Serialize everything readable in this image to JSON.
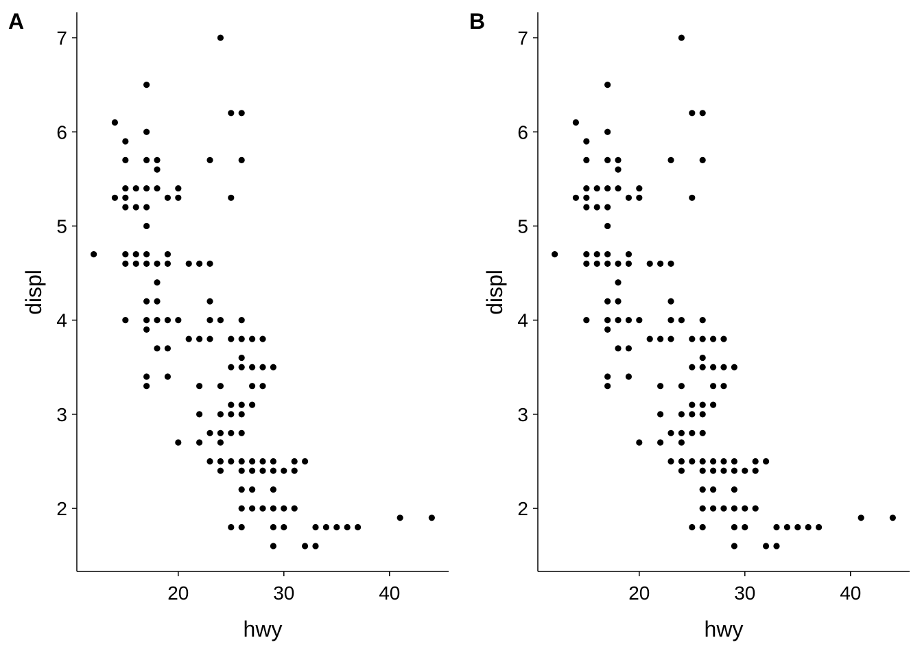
{
  "chart_data": [
    {
      "type": "scatter",
      "tag": "A",
      "xlabel": "hwy",
      "ylabel": "displ",
      "xticks": [
        20,
        30,
        40
      ],
      "yticks": [
        2,
        3,
        4,
        5,
        6,
        7
      ],
      "xlim": [
        10.4,
        45.6
      ],
      "ylim": [
        1.33,
        7.27
      ],
      "grid": false,
      "legend": "none",
      "point_color": "#000000",
      "points": [
        [
          12,
          4.7
        ],
        [
          14,
          5.3
        ],
        [
          14,
          6.1
        ],
        [
          15,
          5.9
        ],
        [
          15,
          5.7
        ],
        [
          15,
          5.4
        ],
        [
          15,
          5.3
        ],
        [
          15,
          5.2
        ],
        [
          15,
          4.7
        ],
        [
          15,
          4.6
        ],
        [
          15,
          4.0
        ],
        [
          16,
          5.4
        ],
        [
          16,
          5.2
        ],
        [
          16,
          4.7
        ],
        [
          16,
          4.6
        ],
        [
          17,
          6.5
        ],
        [
          17,
          6.0
        ],
        [
          17,
          5.7
        ],
        [
          17,
          5.4
        ],
        [
          17,
          5.2
        ],
        [
          17,
          5.0
        ],
        [
          17,
          4.7
        ],
        [
          17,
          4.6
        ],
        [
          17,
          4.2
        ],
        [
          17,
          4.0
        ],
        [
          17,
          3.9
        ],
        [
          17,
          3.4
        ],
        [
          17,
          3.3
        ],
        [
          18,
          5.7
        ],
        [
          18,
          5.6
        ],
        [
          18,
          5.4
        ],
        [
          18,
          4.6
        ],
        [
          18,
          4.4
        ],
        [
          18,
          4.2
        ],
        [
          18,
          4.0
        ],
        [
          18,
          3.7
        ],
        [
          19,
          5.3
        ],
        [
          19,
          4.7
        ],
        [
          19,
          4.6
        ],
        [
          19,
          4.0
        ],
        [
          19,
          3.7
        ],
        [
          19,
          3.4
        ],
        [
          20,
          5.4
        ],
        [
          20,
          5.3
        ],
        [
          20,
          4.0
        ],
        [
          20,
          2.7
        ],
        [
          21,
          4.6
        ],
        [
          21,
          3.8
        ],
        [
          22,
          4.6
        ],
        [
          22,
          3.8
        ],
        [
          22,
          3.3
        ],
        [
          22,
          3.0
        ],
        [
          22,
          2.7
        ],
        [
          23,
          5.7
        ],
        [
          23,
          4.6
        ],
        [
          23,
          4.2
        ],
        [
          23,
          4.0
        ],
        [
          23,
          3.8
        ],
        [
          23,
          2.8
        ],
        [
          23,
          2.5
        ],
        [
          24,
          7.0
        ],
        [
          24,
          4.0
        ],
        [
          24,
          3.3
        ],
        [
          24,
          3.0
        ],
        [
          24,
          2.8
        ],
        [
          24,
          2.7
        ],
        [
          24,
          2.5
        ],
        [
          24,
          2.4
        ],
        [
          25,
          6.2
        ],
        [
          25,
          5.3
        ],
        [
          25,
          3.8
        ],
        [
          25,
          3.5
        ],
        [
          25,
          3.1
        ],
        [
          25,
          3.0
        ],
        [
          25,
          2.8
        ],
        [
          25,
          2.5
        ],
        [
          25,
          1.8
        ],
        [
          26,
          6.2
        ],
        [
          26,
          5.7
        ],
        [
          26,
          4.0
        ],
        [
          26,
          3.8
        ],
        [
          26,
          3.6
        ],
        [
          26,
          3.5
        ],
        [
          26,
          3.1
        ],
        [
          26,
          3.0
        ],
        [
          26,
          2.8
        ],
        [
          26,
          2.5
        ],
        [
          26,
          2.4
        ],
        [
          26,
          2.2
        ],
        [
          26,
          2.0
        ],
        [
          26,
          1.8
        ],
        [
          27,
          3.8
        ],
        [
          27,
          3.5
        ],
        [
          27,
          3.3
        ],
        [
          27,
          3.1
        ],
        [
          27,
          2.5
        ],
        [
          27,
          2.4
        ],
        [
          27,
          2.2
        ],
        [
          27,
          2.0
        ],
        [
          28,
          3.8
        ],
        [
          28,
          3.5
        ],
        [
          28,
          3.3
        ],
        [
          28,
          2.5
        ],
        [
          28,
          2.4
        ],
        [
          28,
          2.0
        ],
        [
          29,
          3.5
        ],
        [
          29,
          2.5
        ],
        [
          29,
          2.4
        ],
        [
          29,
          2.2
        ],
        [
          29,
          2.0
        ],
        [
          29,
          1.8
        ],
        [
          29,
          1.6
        ],
        [
          30,
          2.4
        ],
        [
          30,
          2.0
        ],
        [
          30,
          1.8
        ],
        [
          31,
          2.5
        ],
        [
          31,
          2.4
        ],
        [
          31,
          2.0
        ],
        [
          32,
          2.5
        ],
        [
          32,
          1.6
        ],
        [
          33,
          1.8
        ],
        [
          33,
          1.6
        ],
        [
          34,
          1.8
        ],
        [
          35,
          1.8
        ],
        [
          36,
          1.8
        ],
        [
          37,
          1.8
        ],
        [
          41,
          1.9
        ],
        [
          44,
          1.9
        ]
      ]
    },
    {
      "type": "scatter",
      "tag": "B",
      "xlabel": "hwy",
      "ylabel": "displ",
      "xticks": [
        20,
        30,
        40
      ],
      "yticks": [
        2,
        3,
        4,
        5,
        6,
        7
      ],
      "xlim": [
        10.4,
        45.6
      ],
      "ylim": [
        1.33,
        7.27
      ],
      "grid": false,
      "legend": "none",
      "point_color": "#000000",
      "points": [
        [
          12,
          4.7
        ],
        [
          14,
          5.3
        ],
        [
          14,
          6.1
        ],
        [
          15,
          5.9
        ],
        [
          15,
          5.7
        ],
        [
          15,
          5.4
        ],
        [
          15,
          5.3
        ],
        [
          15,
          5.2
        ],
        [
          15,
          4.7
        ],
        [
          15,
          4.6
        ],
        [
          15,
          4.0
        ],
        [
          16,
          5.4
        ],
        [
          16,
          5.2
        ],
        [
          16,
          4.7
        ],
        [
          16,
          4.6
        ],
        [
          17,
          6.5
        ],
        [
          17,
          6.0
        ],
        [
          17,
          5.7
        ],
        [
          17,
          5.4
        ],
        [
          17,
          5.2
        ],
        [
          17,
          5.0
        ],
        [
          17,
          4.7
        ],
        [
          17,
          4.6
        ],
        [
          17,
          4.2
        ],
        [
          17,
          4.0
        ],
        [
          17,
          3.9
        ],
        [
          17,
          3.4
        ],
        [
          17,
          3.3
        ],
        [
          18,
          5.7
        ],
        [
          18,
          5.6
        ],
        [
          18,
          5.4
        ],
        [
          18,
          4.6
        ],
        [
          18,
          4.4
        ],
        [
          18,
          4.2
        ],
        [
          18,
          4.0
        ],
        [
          18,
          3.7
        ],
        [
          19,
          5.3
        ],
        [
          19,
          4.7
        ],
        [
          19,
          4.6
        ],
        [
          19,
          4.0
        ],
        [
          19,
          3.7
        ],
        [
          19,
          3.4
        ],
        [
          20,
          5.4
        ],
        [
          20,
          5.3
        ],
        [
          20,
          4.0
        ],
        [
          20,
          2.7
        ],
        [
          21,
          4.6
        ],
        [
          21,
          3.8
        ],
        [
          22,
          4.6
        ],
        [
          22,
          3.8
        ],
        [
          22,
          3.3
        ],
        [
          22,
          3.0
        ],
        [
          22,
          2.7
        ],
        [
          23,
          5.7
        ],
        [
          23,
          4.6
        ],
        [
          23,
          4.2
        ],
        [
          23,
          4.0
        ],
        [
          23,
          3.8
        ],
        [
          23,
          2.8
        ],
        [
          23,
          2.5
        ],
        [
          24,
          7.0
        ],
        [
          24,
          4.0
        ],
        [
          24,
          3.3
        ],
        [
          24,
          3.0
        ],
        [
          24,
          2.8
        ],
        [
          24,
          2.7
        ],
        [
          24,
          2.5
        ],
        [
          24,
          2.4
        ],
        [
          25,
          6.2
        ],
        [
          25,
          5.3
        ],
        [
          25,
          3.8
        ],
        [
          25,
          3.5
        ],
        [
          25,
          3.1
        ],
        [
          25,
          3.0
        ],
        [
          25,
          2.8
        ],
        [
          25,
          2.5
        ],
        [
          25,
          1.8
        ],
        [
          26,
          6.2
        ],
        [
          26,
          5.7
        ],
        [
          26,
          4.0
        ],
        [
          26,
          3.8
        ],
        [
          26,
          3.6
        ],
        [
          26,
          3.5
        ],
        [
          26,
          3.1
        ],
        [
          26,
          3.0
        ],
        [
          26,
          2.8
        ],
        [
          26,
          2.5
        ],
        [
          26,
          2.4
        ],
        [
          26,
          2.2
        ],
        [
          26,
          2.0
        ],
        [
          26,
          1.8
        ],
        [
          27,
          3.8
        ],
        [
          27,
          3.5
        ],
        [
          27,
          3.3
        ],
        [
          27,
          3.1
        ],
        [
          27,
          2.5
        ],
        [
          27,
          2.4
        ],
        [
          27,
          2.2
        ],
        [
          27,
          2.0
        ],
        [
          28,
          3.8
        ],
        [
          28,
          3.5
        ],
        [
          28,
          3.3
        ],
        [
          28,
          2.5
        ],
        [
          28,
          2.4
        ],
        [
          28,
          2.0
        ],
        [
          29,
          3.5
        ],
        [
          29,
          2.5
        ],
        [
          29,
          2.4
        ],
        [
          29,
          2.2
        ],
        [
          29,
          2.0
        ],
        [
          29,
          1.8
        ],
        [
          29,
          1.6
        ],
        [
          30,
          2.4
        ],
        [
          30,
          2.0
        ],
        [
          30,
          1.8
        ],
        [
          31,
          2.5
        ],
        [
          31,
          2.4
        ],
        [
          31,
          2.0
        ],
        [
          32,
          2.5
        ],
        [
          32,
          1.6
        ],
        [
          33,
          1.8
        ],
        [
          33,
          1.6
        ],
        [
          34,
          1.8
        ],
        [
          35,
          1.8
        ],
        [
          36,
          1.8
        ],
        [
          37,
          1.8
        ],
        [
          41,
          1.9
        ],
        [
          44,
          1.9
        ]
      ]
    }
  ]
}
